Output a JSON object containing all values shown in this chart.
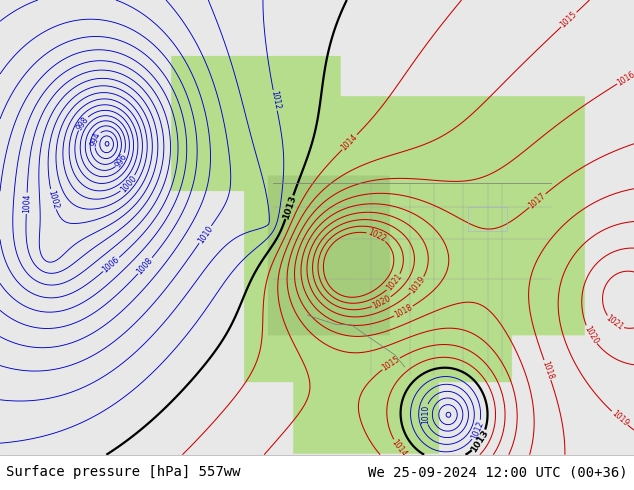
{
  "title_left": "Surface pressure [hPa] 557ww",
  "title_right": "We 25-09-2024 12:00 UTC (00+36)",
  "contour_color_blue": "#0000cc",
  "contour_color_red": "#cc0000",
  "contour_color_black": "#000000",
  "figsize": [
    6.34,
    4.9
  ],
  "dpi": 100,
  "footer_text_color": "#000000",
  "footer_fontsize": 10
}
